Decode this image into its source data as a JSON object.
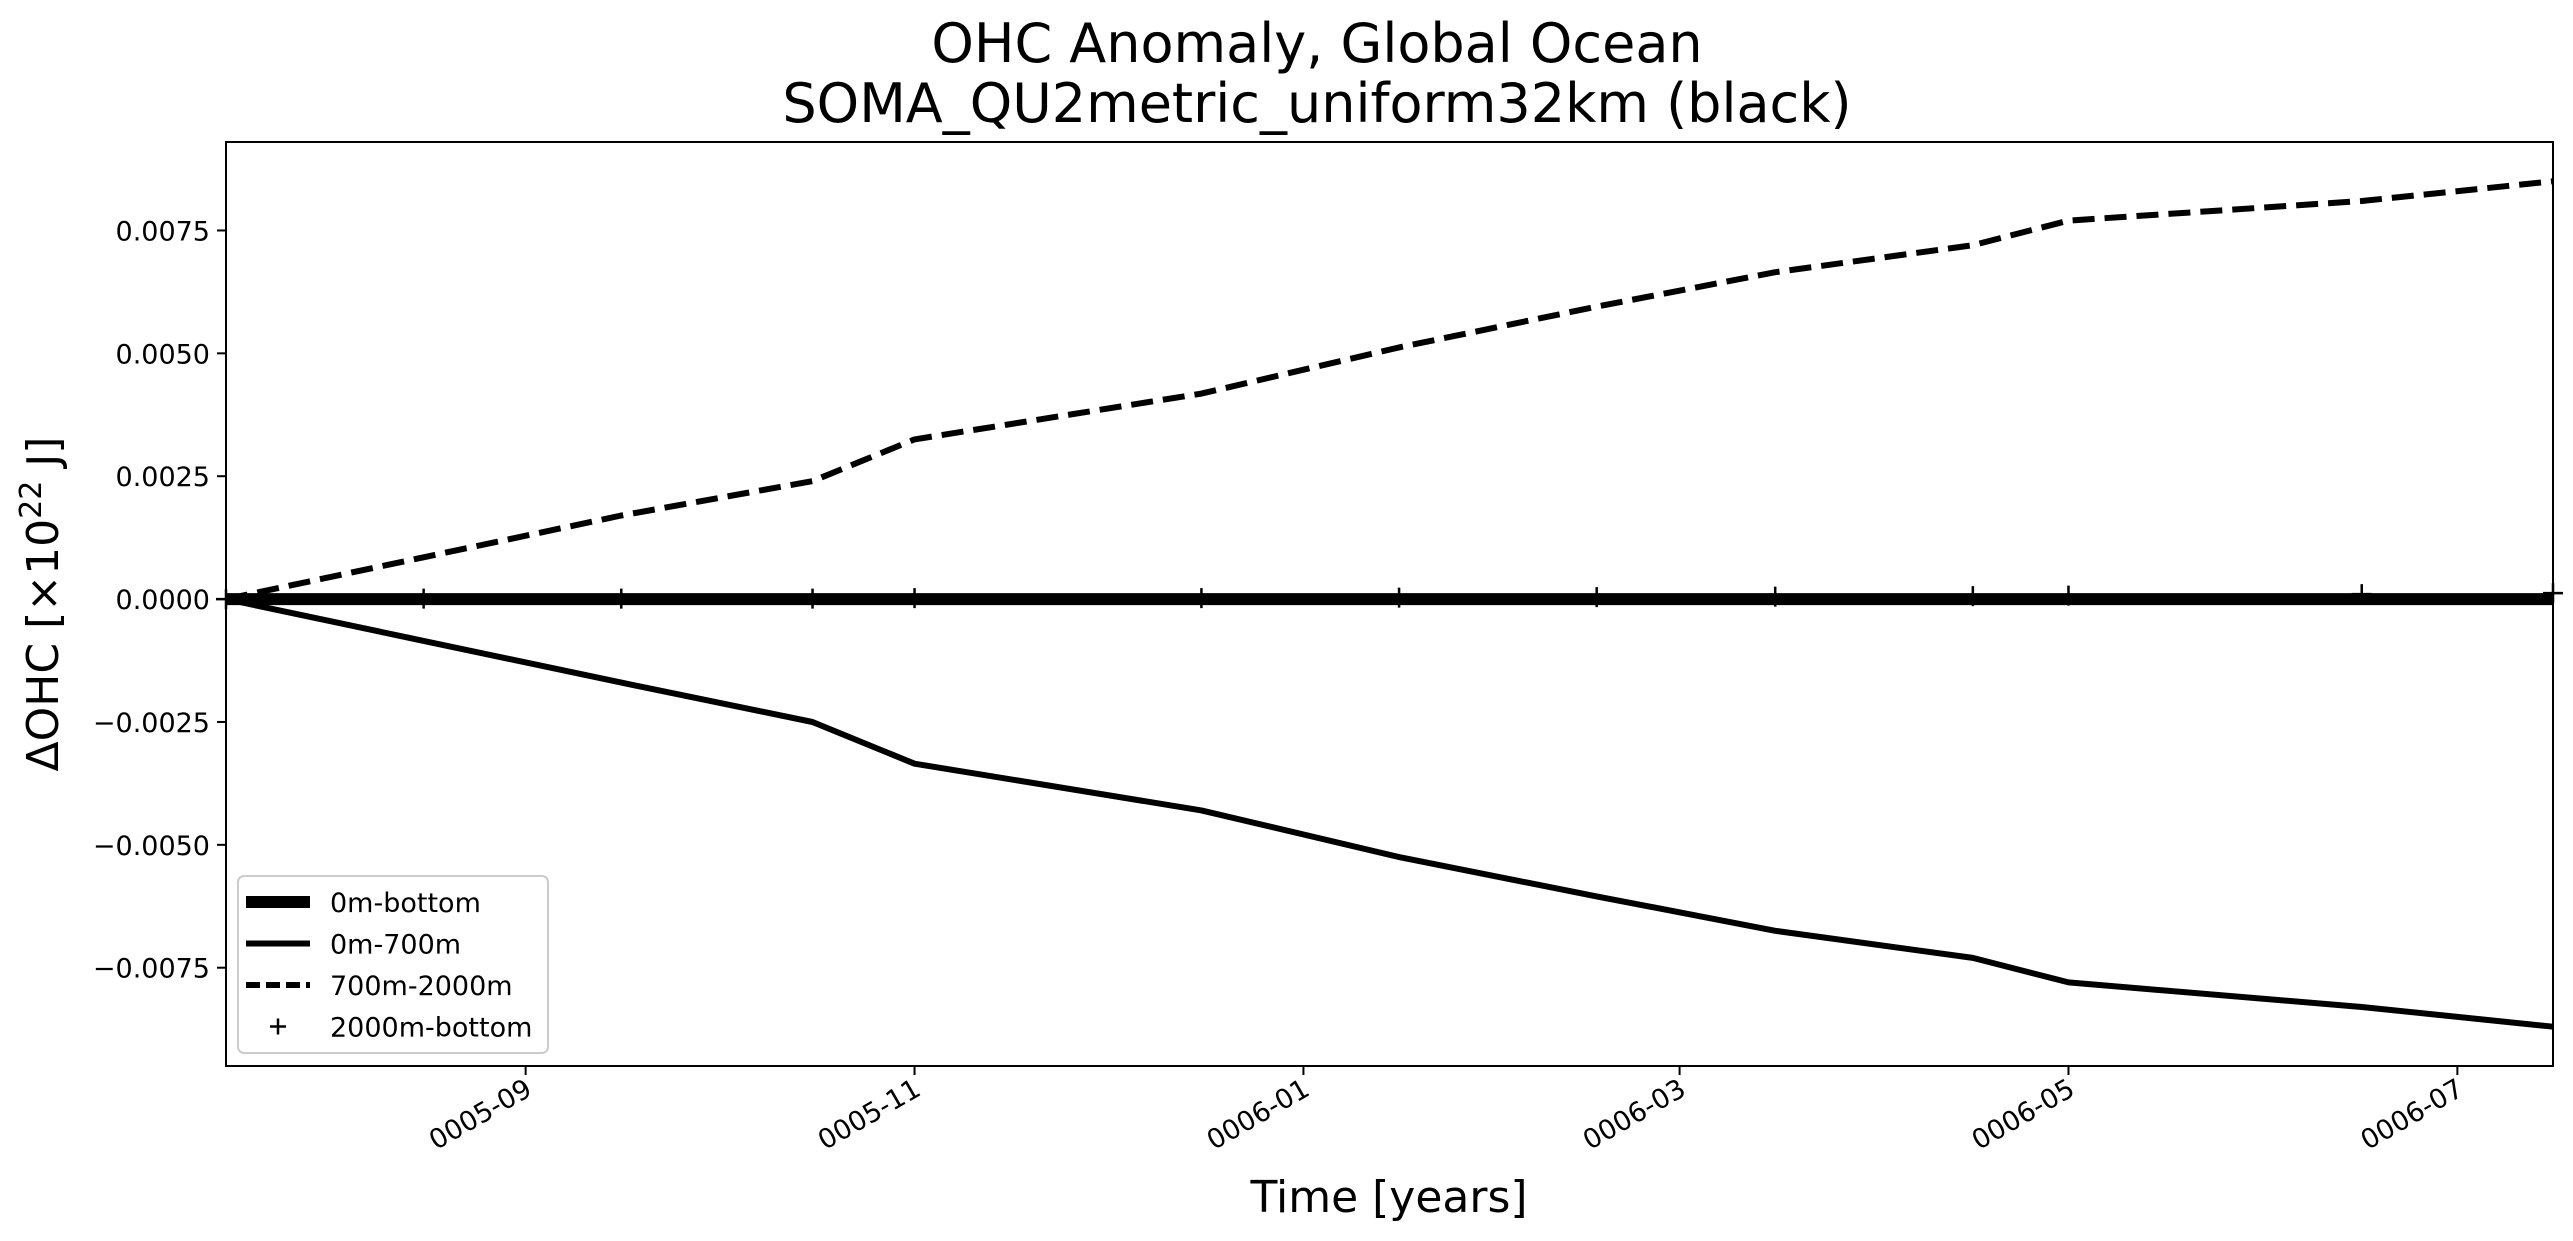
{
  "chart_data": {
    "type": "line",
    "title_line1": "OHC Anomaly, Global Ocean",
    "title_line2": "SOMA_QU2metric_uniform32km (black)",
    "xlabel": "Time [years]",
    "ylabel_prefix": "ΔOHC [×10",
    "ylabel_exp": "22",
    "ylabel_suffix": " J]",
    "x_axis_type": "date",
    "xlim": [
      "0005-07-16",
      "0006-07-16"
    ],
    "ylim": [
      -0.0095,
      0.0093
    ],
    "x_ticks": [
      {
        "date": "0005-09-01",
        "label": "0005-09"
      },
      {
        "date": "0005-11-01",
        "label": "0005-11"
      },
      {
        "date": "0006-01-01",
        "label": "0006-01"
      },
      {
        "date": "0006-03-01",
        "label": "0006-03"
      },
      {
        "date": "0006-05-01",
        "label": "0006-05"
      },
      {
        "date": "0006-07-01",
        "label": "0006-07"
      }
    ],
    "y_ticks": [
      {
        "value": 0.0075,
        "label": "0.0075"
      },
      {
        "value": 0.005,
        "label": "0.0050"
      },
      {
        "value": 0.0025,
        "label": "0.0025"
      },
      {
        "value": 0.0,
        "label": "0.0000"
      },
      {
        "value": -0.0025,
        "label": "−0.0025"
      },
      {
        "value": -0.005,
        "label": "−0.0050"
      },
      {
        "value": -0.0075,
        "label": "−0.0075"
      }
    ],
    "grid": false,
    "legend_position": "lower-left",
    "color": "#000000",
    "x": [
      "0005-07-16",
      "0005-08-16",
      "0005-09-16",
      "0005-10-16",
      "0005-11-01",
      "0005-12-16",
      "0006-01-16",
      "0006-02-16",
      "0006-03-16",
      "0006-04-16",
      "0006-05-01",
      "0006-06-16",
      "0006-07-16"
    ],
    "series": [
      {
        "name": "0m-bottom",
        "style": "thick-solid",
        "values": [
          0,
          0,
          0,
          0,
          0,
          0,
          0,
          0,
          0,
          0,
          0,
          0,
          0
        ]
      },
      {
        "name": "0m-700m",
        "style": "solid",
        "values": [
          0,
          -0.00085,
          -0.0017,
          -0.0025,
          -0.00335,
          -0.0043,
          -0.00525,
          -0.00605,
          -0.00675,
          -0.0073,
          -0.0078,
          -0.0083,
          -0.0087
        ]
      },
      {
        "name": "700m-2000m",
        "style": "dashed",
        "values": [
          0,
          0.00085,
          0.0017,
          0.0024,
          0.00325,
          0.00418,
          0.00512,
          0.00595,
          0.00665,
          0.0072,
          0.0077,
          0.0081,
          0.0085
        ]
      },
      {
        "name": "2000m-bottom",
        "style": "plus",
        "values": [
          0,
          1e-05,
          1e-05,
          1e-05,
          2e-05,
          2e-05,
          3e-05,
          4e-05,
          5e-05,
          6e-05,
          7e-05,
          0.0001,
          0.00012
        ]
      }
    ]
  }
}
